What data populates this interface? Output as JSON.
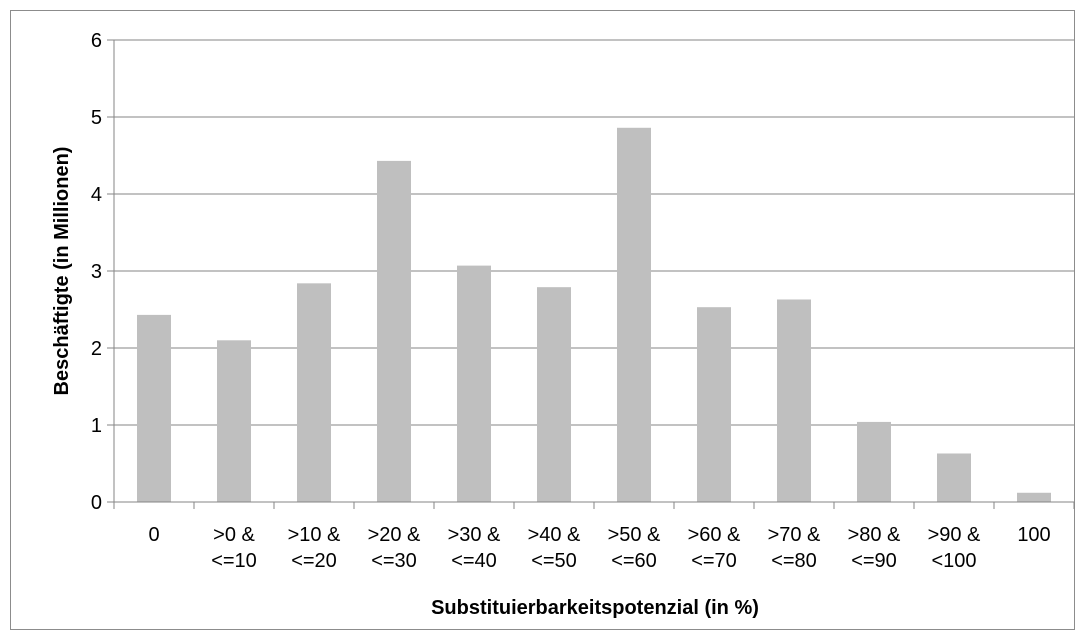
{
  "chart_data": {
    "type": "bar",
    "categories": [
      [
        "0"
      ],
      [
        ">0 &",
        "<=10"
      ],
      [
        ">10 &",
        "<=20"
      ],
      [
        ">20 &",
        "<=30"
      ],
      [
        ">30 &",
        "<=40"
      ],
      [
        ">40 &",
        "<=50"
      ],
      [
        ">50 &",
        "<=60"
      ],
      [
        ">60 &",
        "<=70"
      ],
      [
        ">70 &",
        "<=80"
      ],
      [
        ">80 &",
        "<=90"
      ],
      [
        ">90 &",
        "<100"
      ],
      [
        "100"
      ]
    ],
    "values": [
      2.43,
      2.1,
      2.84,
      4.43,
      3.07,
      2.79,
      4.86,
      2.53,
      2.63,
      1.04,
      0.63,
      0.12
    ],
    "title": "",
    "xlabel": "Substituierbarkeitspotenzial  (in %)",
    "ylabel": "Beschäftigte  (in Millionen)",
    "ylim": [
      0,
      6
    ],
    "yticks": [
      "0",
      "1",
      "2",
      "3",
      "4",
      "5",
      "6"
    ],
    "grid": true,
    "legend": "none",
    "bar_color": "#bfbfbf",
    "grid_color": "#868686"
  }
}
